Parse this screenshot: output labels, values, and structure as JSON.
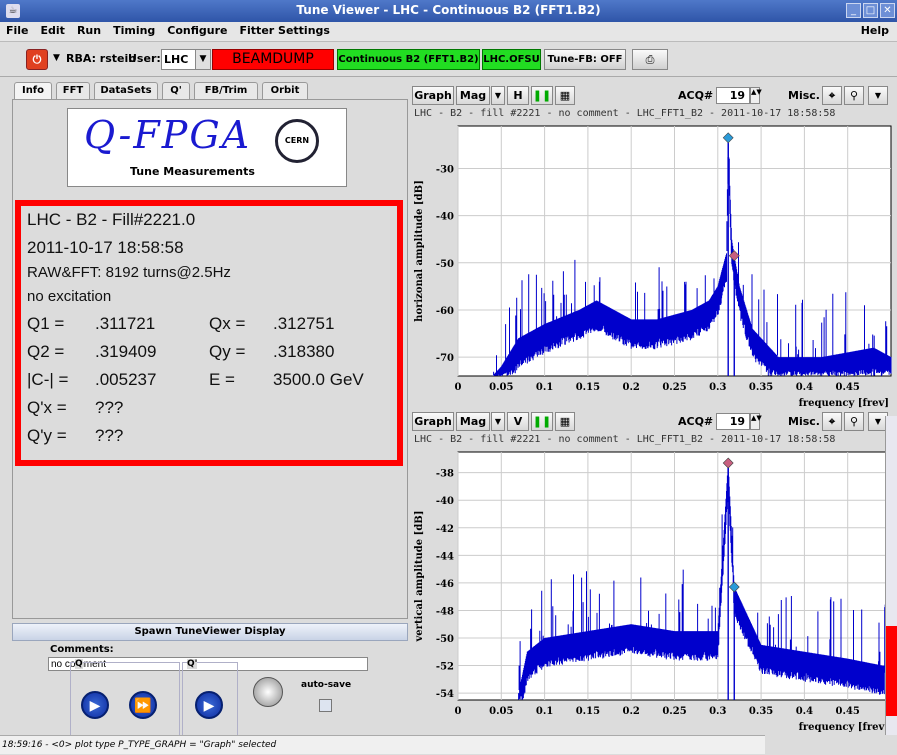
{
  "window": {
    "title": "Tune Viewer - LHC - Continuous B2 (FFT1.B2)",
    "app_icon": "java-app-icon"
  },
  "menu": {
    "items": [
      "File",
      "Edit",
      "Run",
      "Timing",
      "Configure",
      "Fitter Settings"
    ],
    "help": "Help"
  },
  "toolbar": {
    "rba_label": "RBA: rstein",
    "user_label": "User:",
    "user_value": "LHC",
    "beamdump": "BEAMDUMP",
    "continuous": "Continuous B2 (FFT1.B2)",
    "ofsu": "LHC.OFSU",
    "tunefb": "Tune-FB: OFF",
    "colors": {
      "beamdump": "#ff0000",
      "continuous": "#22dd22",
      "ofsu": "#22dd22"
    }
  },
  "tabs": [
    "Info",
    "FFT",
    "DataSets",
    "Q'",
    "FB/Trim",
    "Orbit"
  ],
  "logo": {
    "title": "Q-FPGA",
    "subtitle": "Tune Measurements",
    "emblem": "CERN"
  },
  "info": {
    "l1": "LHC - B2 - Fill#2221.0",
    "l2": "2011-10-17 18:58:58",
    "l3": "RAW&FFT: 8192 turns@2.5Hz",
    "l4": "no excitation",
    "q1_label": "Q1 =",
    "q1": ".311721",
    "qx_label": "Qx =",
    "qx": ".312751",
    "q2_label": "Q2 =",
    "q2": ".319409",
    "qy_label": "Qy =",
    "qy": ".318380",
    "c_label": "|C-| =",
    "c": ".005237",
    "e_label": "E =",
    "e": "3500.0 GeV",
    "qpx_label": "Q'x =",
    "qpx": "???",
    "qpy_label": "Q'y =",
    "qpy": "???"
  },
  "spawn": "Spawn TuneViewer Display",
  "comments": {
    "label": "Comments:",
    "value": "no comment"
  },
  "controls": {
    "q_label": "Q",
    "qp_label": "Q'",
    "autosave": "auto-save"
  },
  "status": "18:59:16 - <0> plot type P_TYPE_GRAPH = \"Graph\" selected",
  "graph_top": {
    "graph_btn": "Graph",
    "mode": "Mag",
    "plane": "H",
    "acq_label": "ACQ#",
    "acq": "19",
    "misc": "Misc.",
    "subtitle": "LHC - B2 - fill #2221 - no comment - LHC_FFT1_B2 - 2011-10-17 18:58:58"
  },
  "graph_bottom": {
    "graph_btn": "Graph",
    "mode": "Mag",
    "plane": "V",
    "acq_label": "ACQ#",
    "acq": "19",
    "misc": "Misc.",
    "subtitle": "LHC - B2 - fill #2221 - no comment - LHC_FFT1_B2 - 2011-10-17 18:58:58"
  },
  "chart_data": [
    {
      "type": "line",
      "title": "",
      "xlabel": "frequency [frev]",
      "ylabel": "horizonal amplitude [dB]",
      "xlim": [
        0,
        0.5
      ],
      "ylim": [
        -74,
        -21
      ],
      "xticks": [
        "0",
        "0.05",
        "0.1",
        "0.15",
        "0.2",
        "0.25",
        "0.3",
        "0.35",
        "0.4",
        "0.45"
      ],
      "xtick_values": [
        0,
        0.05,
        0.1,
        0.15,
        0.2,
        0.25,
        0.3,
        0.35,
        0.4,
        0.45
      ],
      "yticks": [
        "-30",
        "-40",
        "-50",
        "-60",
        "-70"
      ],
      "ytick_values": [
        -30,
        -40,
        -50,
        -60,
        -70
      ],
      "series_color": "#0000cc",
      "markers": [
        {
          "x": 0.312,
          "y": -23.5,
          "color": "#2a9ad8"
        },
        {
          "x": 0.319,
          "y": -48.5,
          "color": "#c86080"
        }
      ],
      "envelope": [
        [
          0.04,
          -74
        ],
        [
          0.05,
          -72
        ],
        [
          0.07,
          -66
        ],
        [
          0.1,
          -63
        ],
        [
          0.14,
          -60
        ],
        [
          0.16,
          -58
        ],
        [
          0.2,
          -62
        ],
        [
          0.23,
          -62
        ],
        [
          0.27,
          -60
        ],
        [
          0.29,
          -58
        ],
        [
          0.3,
          -55
        ],
        [
          0.31,
          -48
        ],
        [
          0.312,
          -23.5
        ],
        [
          0.316,
          -45
        ],
        [
          0.319,
          -48.5
        ],
        [
          0.325,
          -55
        ],
        [
          0.34,
          -64
        ],
        [
          0.37,
          -70
        ],
        [
          0.42,
          -70
        ],
        [
          0.48,
          -68
        ],
        [
          0.5,
          -70
        ]
      ]
    },
    {
      "type": "line",
      "title": "",
      "xlabel": "frequency [frev]",
      "ylabel": "vertical amplitude [dB]",
      "xlim": [
        0,
        0.5
      ],
      "ylim": [
        -54.5,
        -36.5
      ],
      "xticks": [
        "0",
        "0.05",
        "0.1",
        "0.15",
        "0.2",
        "0.25",
        "0.3",
        "0.35",
        "0.4",
        "0.45"
      ],
      "xtick_values": [
        0,
        0.05,
        0.1,
        0.15,
        0.2,
        0.25,
        0.3,
        0.35,
        0.4,
        0.45
      ],
      "yticks": [
        "-38",
        "-40",
        "-42",
        "-44",
        "-46",
        "-48",
        "-50",
        "-52",
        "-54"
      ],
      "ytick_values": [
        -38,
        -40,
        -42,
        -44,
        -46,
        -48,
        -50,
        -52,
        -54
      ],
      "series_color": "#0000cc",
      "markers": [
        {
          "x": 0.312,
          "y": -37.3,
          "color": "#c86080"
        },
        {
          "x": 0.319,
          "y": -46.3,
          "color": "#2a9ad8"
        }
      ],
      "envelope": [
        [
          0.07,
          -54
        ],
        [
          0.08,
          -51
        ],
        [
          0.1,
          -50
        ],
        [
          0.15,
          -49.5
        ],
        [
          0.2,
          -49
        ],
        [
          0.25,
          -49.5
        ],
        [
          0.3,
          -49.5
        ],
        [
          0.312,
          -37.3
        ],
        [
          0.319,
          -46.3
        ],
        [
          0.35,
          -50.5
        ],
        [
          0.4,
          -51
        ],
        [
          0.45,
          -51.5
        ],
        [
          0.49,
          -52
        ]
      ]
    }
  ]
}
